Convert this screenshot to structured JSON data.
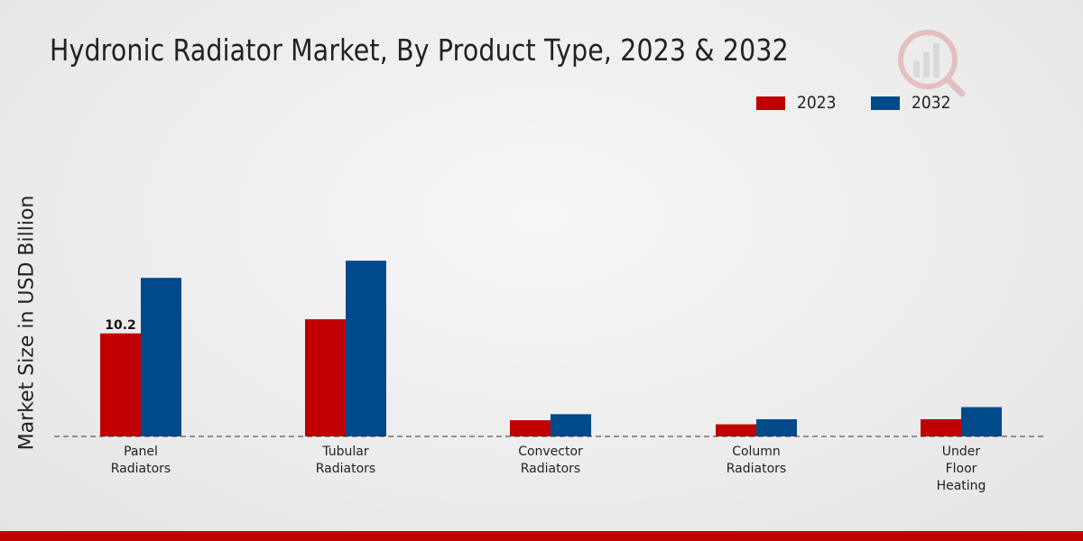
{
  "chart_data": {
    "type": "bar",
    "title": "Hydronic Radiator Market, By Product Type, 2023 & 2032",
    "xlabel": "",
    "ylabel": "Market Size in USD Billion",
    "categories": [
      [
        "Panel",
        "Radiators"
      ],
      [
        "Tubular",
        "Radiators"
      ],
      [
        "Convector",
        "Radiators"
      ],
      [
        "Column",
        "Radiators"
      ],
      [
        "Under",
        "Floor",
        "Heating"
      ]
    ],
    "series": [
      {
        "name": "2023",
        "color": "#c00000",
        "values": [
          10.2,
          11.6,
          1.6,
          1.2,
          1.7
        ]
      },
      {
        "name": "2032",
        "color": "#004a8c",
        "values": [
          15.7,
          17.4,
          2.2,
          1.7,
          2.9
        ]
      }
    ],
    "data_labels": [
      {
        "series": 0,
        "category": 0,
        "text": "10.2"
      }
    ],
    "ylim": [
      0,
      25
    ],
    "grid": false,
    "legend_position": "top-right"
  }
}
